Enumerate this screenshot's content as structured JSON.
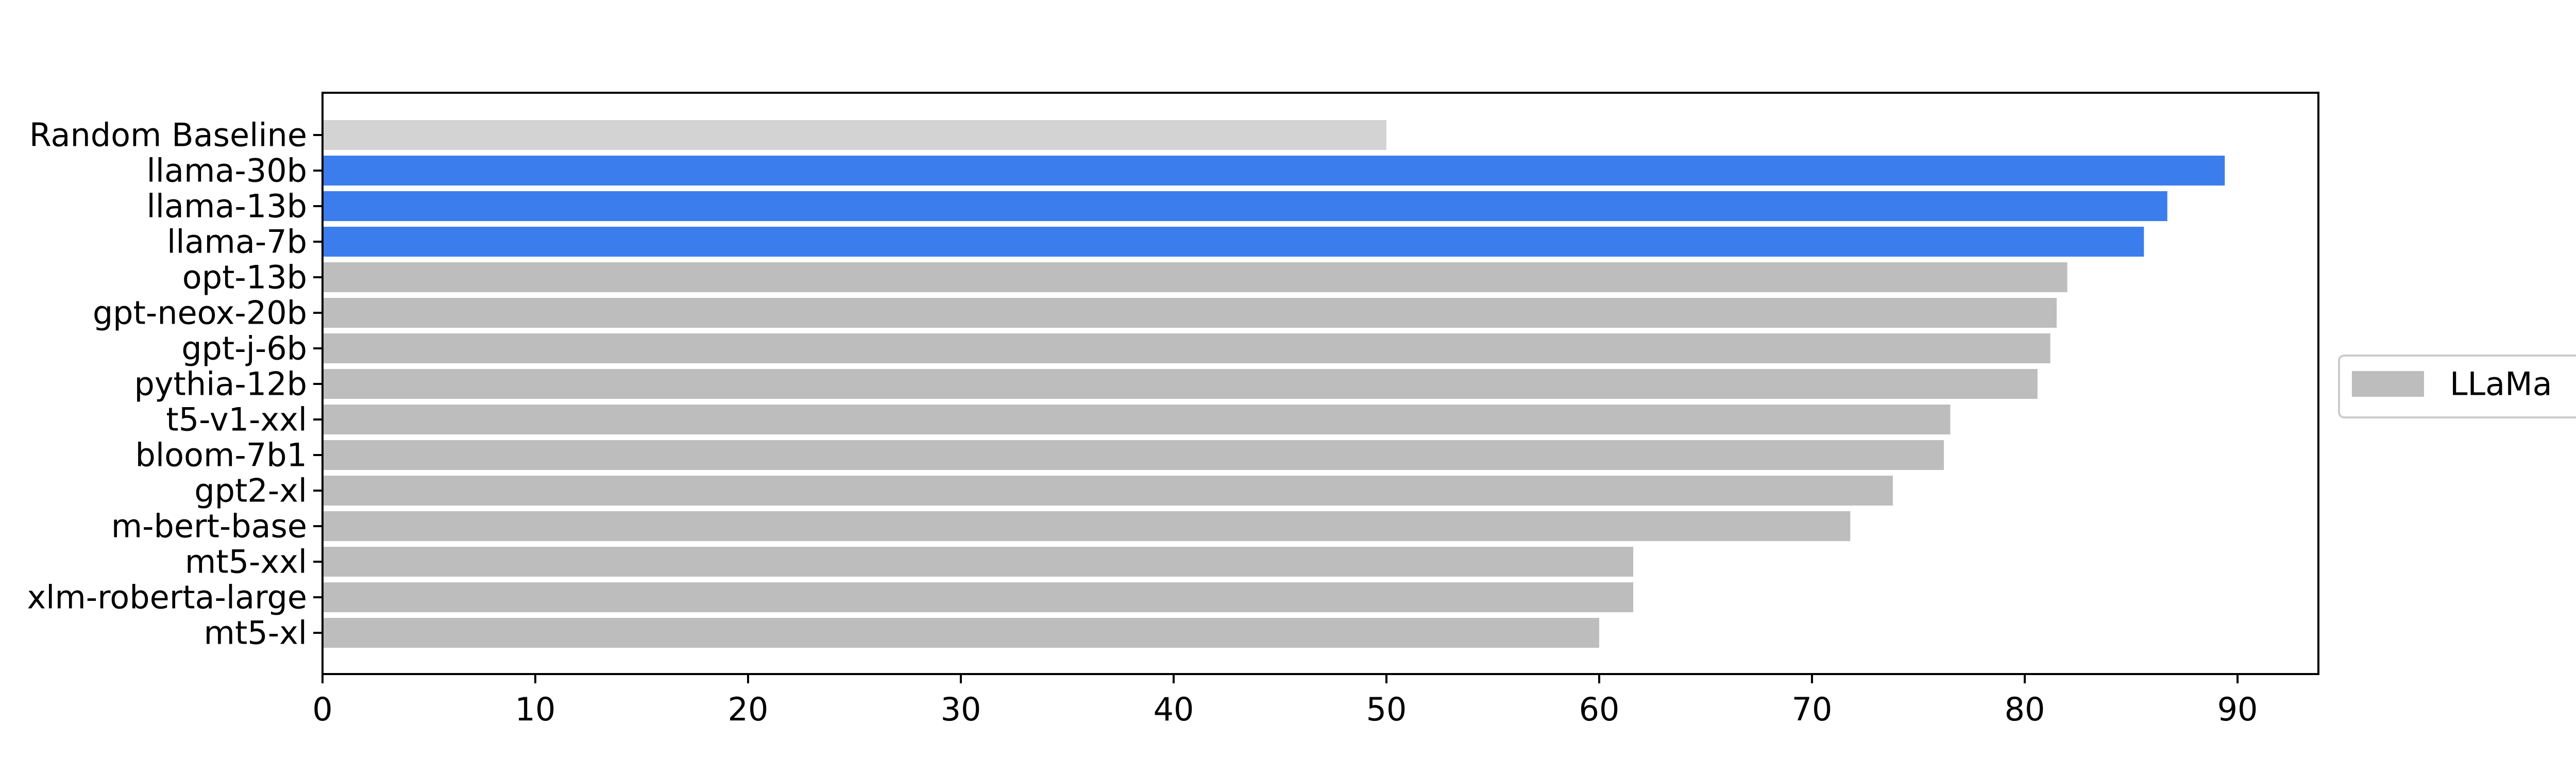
{
  "chart_data": {
    "type": "bar",
    "orientation": "horizontal",
    "categories": [
      "Random Baseline",
      "llama-30b",
      "llama-13b",
      "llama-7b",
      "opt-13b",
      "gpt-neox-20b",
      "gpt-j-6b",
      "pythia-12b",
      "t5-v1-xxl",
      "bloom-7b1",
      "gpt2-xl",
      "m-bert-base",
      "mt5-xxl",
      "xlm-roberta-large",
      "mt5-xl"
    ],
    "values": [
      50.0,
      89.4,
      86.7,
      85.6,
      82.0,
      81.5,
      81.2,
      80.6,
      76.5,
      76.2,
      73.8,
      71.8,
      61.6,
      61.6,
      60.0
    ],
    "bar_colors": [
      "#d3d3d3",
      "#3b7ded",
      "#3b7ded",
      "#3b7ded",
      "#bdbdbd",
      "#bdbdbd",
      "#bdbdbd",
      "#bdbdbd",
      "#bdbdbd",
      "#bdbdbd",
      "#bdbdbd",
      "#bdbdbd",
      "#bdbdbd",
      "#bdbdbd",
      "#bdbdbd"
    ],
    "xlim": [
      0,
      93.8
    ],
    "xticks": [
      0,
      10,
      20,
      30,
      40,
      50,
      60,
      70,
      80,
      90
    ],
    "title": "",
    "xlabel": "",
    "ylabel": "",
    "grid": false,
    "legend": {
      "placement": "right-outside",
      "entries": [
        {
          "label": "LLaMa",
          "color": "#bdbdbd"
        }
      ]
    }
  }
}
